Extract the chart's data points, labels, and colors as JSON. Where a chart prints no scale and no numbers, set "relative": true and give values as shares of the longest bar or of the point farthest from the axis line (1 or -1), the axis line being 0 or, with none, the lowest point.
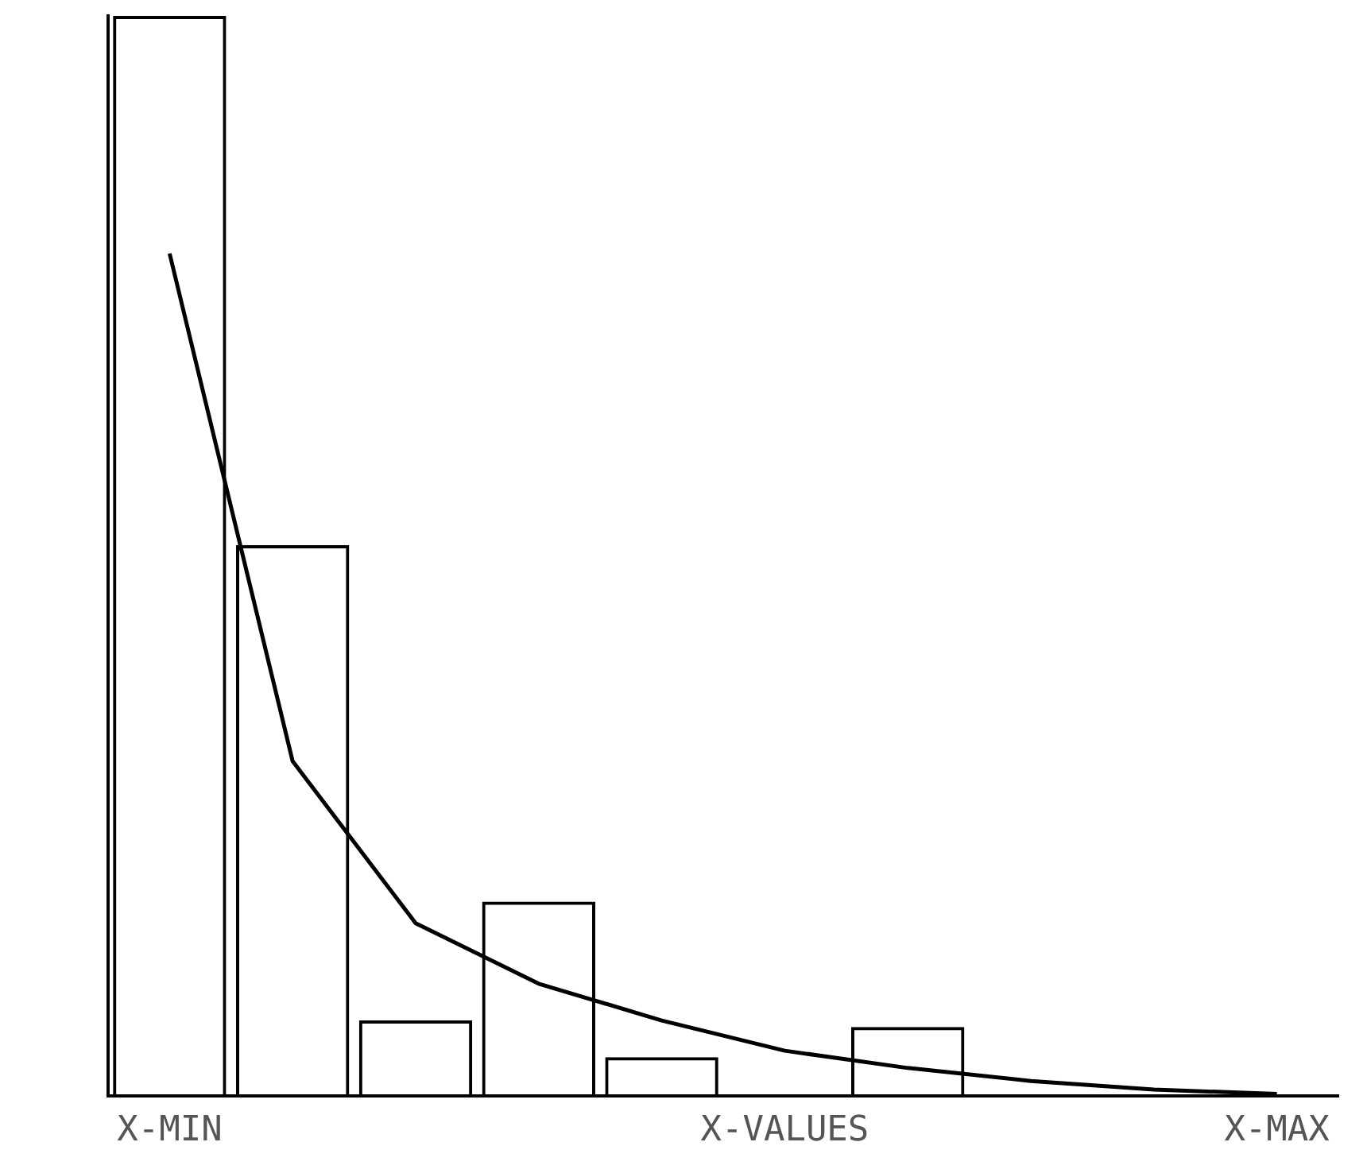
{
  "chart_data": {
    "type": "bar",
    "relative": true,
    "color": "#000000",
    "grid": false,
    "legend": false,
    "categories": [
      "X-MIN",
      null,
      null,
      null,
      null,
      "X-VALUES",
      null,
      null,
      null,
      "X-MAX"
    ],
    "values": [
      1,
      0.51,
      0.07,
      0.18,
      0.036,
      0,
      0.064,
      null,
      null,
      null
    ],
    "series": [
      {
        "type": "line",
        "color": "#000000",
        "marker": "none",
        "values": [
          0.78,
          0.31,
          0.16,
          0.104,
          0.07,
          0.042,
          0.026,
          0.014,
          0.006,
          0.002
        ]
      }
    ]
  }
}
